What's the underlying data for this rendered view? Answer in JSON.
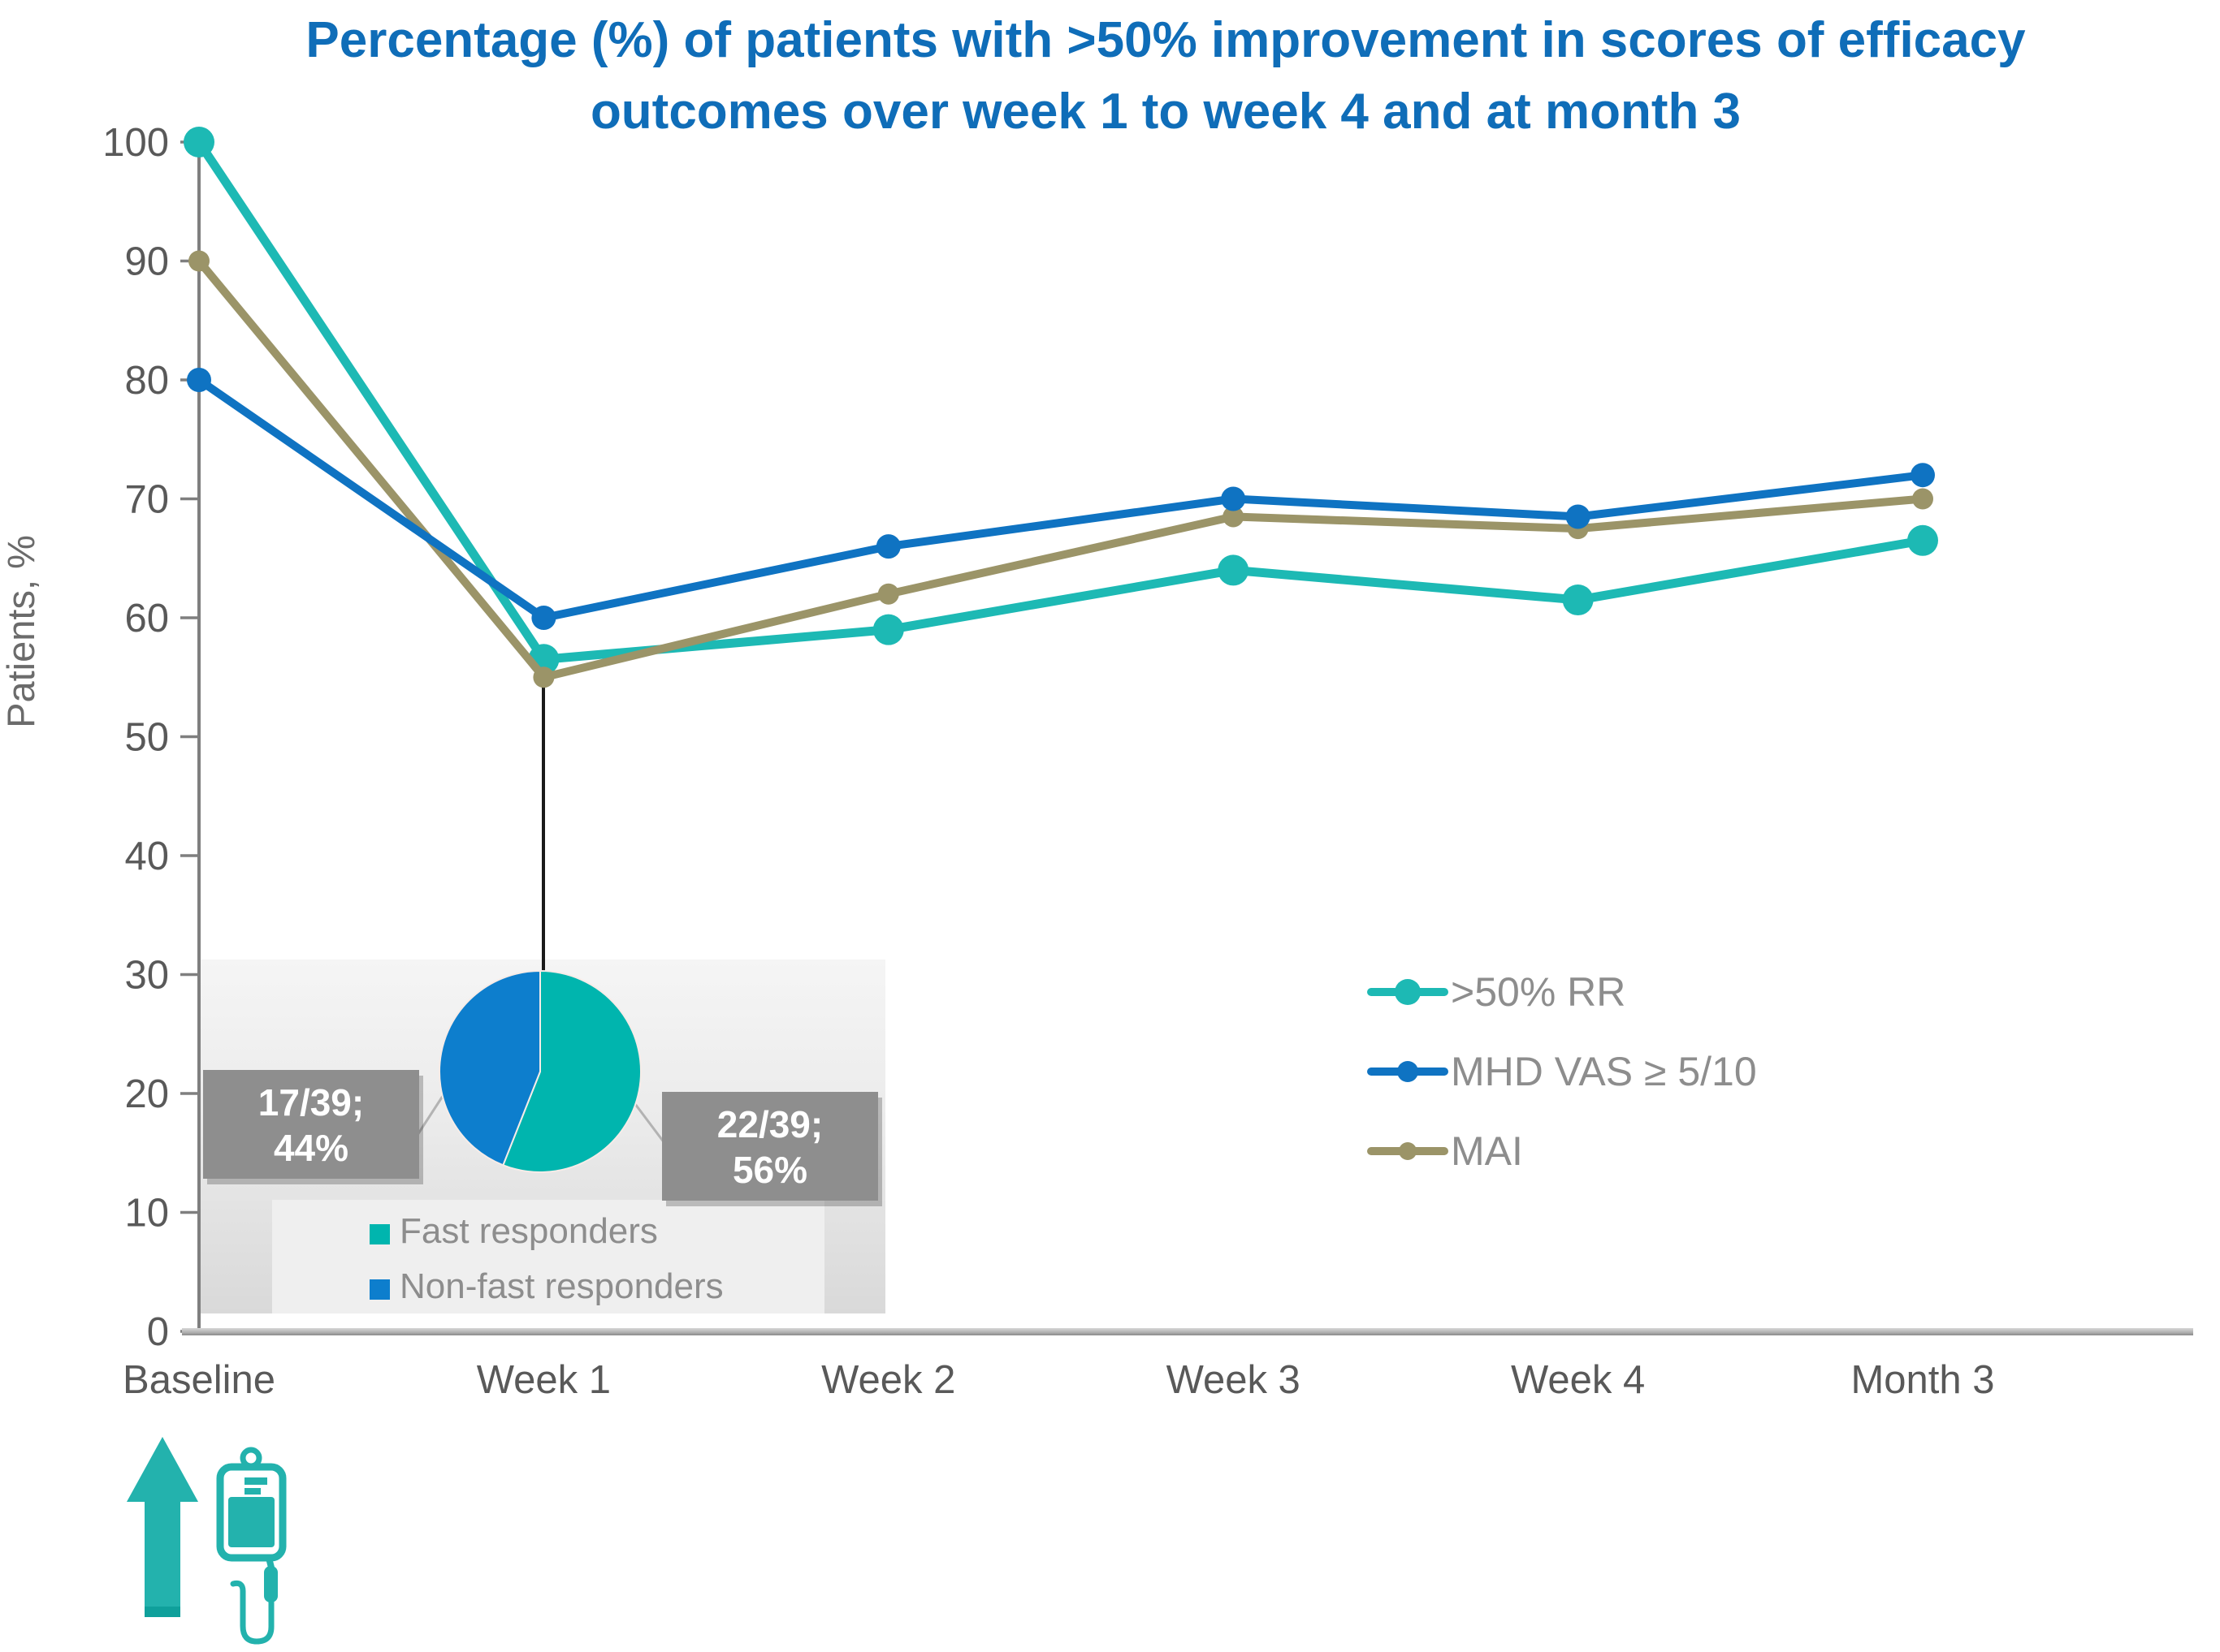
{
  "title": {
    "line1": "Percentage (%) of patients with >50% improvement in scores of efficacy",
    "line2": "outcomes over week 1 to week 4 and at month 3",
    "color": "#0f6db8"
  },
  "y_axis": {
    "label": "Patients, %",
    "min": 0,
    "max": 100,
    "tick_step": 10
  },
  "x_axis": {
    "categories": [
      "Baseline",
      "Week 1",
      "Week 2",
      "Week 3",
      "Week 4",
      "Month 3"
    ]
  },
  "chart_data": [
    {
      "type": "line",
      "title": "Percentage (%) of patients with >50% improvement in scores of efficacy outcomes over week 1 to week 4 and at month 3",
      "xlabel": "",
      "ylabel": "Patients, %",
      "ylim": [
        0,
        100
      ],
      "grid": false,
      "legend_position": "center-right",
      "categories": [
        "Baseline",
        "Week 1",
        "Week 2",
        "Week 3",
        "Week 4",
        "Month 3"
      ],
      "series": [
        {
          "name": ">50% RR",
          "color": "#1db9b4",
          "values": [
            100,
            56.5,
            59,
            64,
            61.5,
            66.5
          ]
        },
        {
          "name": "MHD VAS ≥ 5/10",
          "color": "#0f73c2",
          "values": [
            80,
            60,
            66,
            70,
            68.5,
            72
          ]
        },
        {
          "name": "MAI",
          "color": "#9b9468",
          "values": [
            90,
            55,
            62,
            68.5,
            67.5,
            70
          ]
        }
      ],
      "annotation_line": {
        "x_category": "Week 1",
        "links_to": "inset pie chart"
      }
    },
    {
      "type": "pie",
      "labels": [
        "Fast responders",
        "Non-fast responders"
      ],
      "values": [
        56,
        44
      ],
      "colors": [
        "#00b5ae",
        "#0d7ecd"
      ],
      "start_angle_deg": 0,
      "direction": "clockwise",
      "callouts": [
        {
          "side": "right",
          "line1": "22/39;",
          "line2": "56%",
          "refers_to": "Fast responders"
        },
        {
          "side": "left",
          "line1": "17/39;",
          "line2": "44%",
          "refers_to": "Non-fast responders"
        }
      ]
    }
  ],
  "icons": {
    "arrow": "up-arrow-icon",
    "iv_bag": "iv-infusion-bag-icon",
    "icon_color": "#23b2ad"
  },
  "colors": {
    "axis_text": "#595959",
    "legend_text": "#8d8d8d",
    "axis_line": "#7f7f7f",
    "callout_bg": "#8e8e8e",
    "callout_text": "#ffffff",
    "inset_bg_top": "#f5f5f5",
    "inset_bg_bottom": "#d9d9d9",
    "black_connector": "#1a1a1a"
  }
}
